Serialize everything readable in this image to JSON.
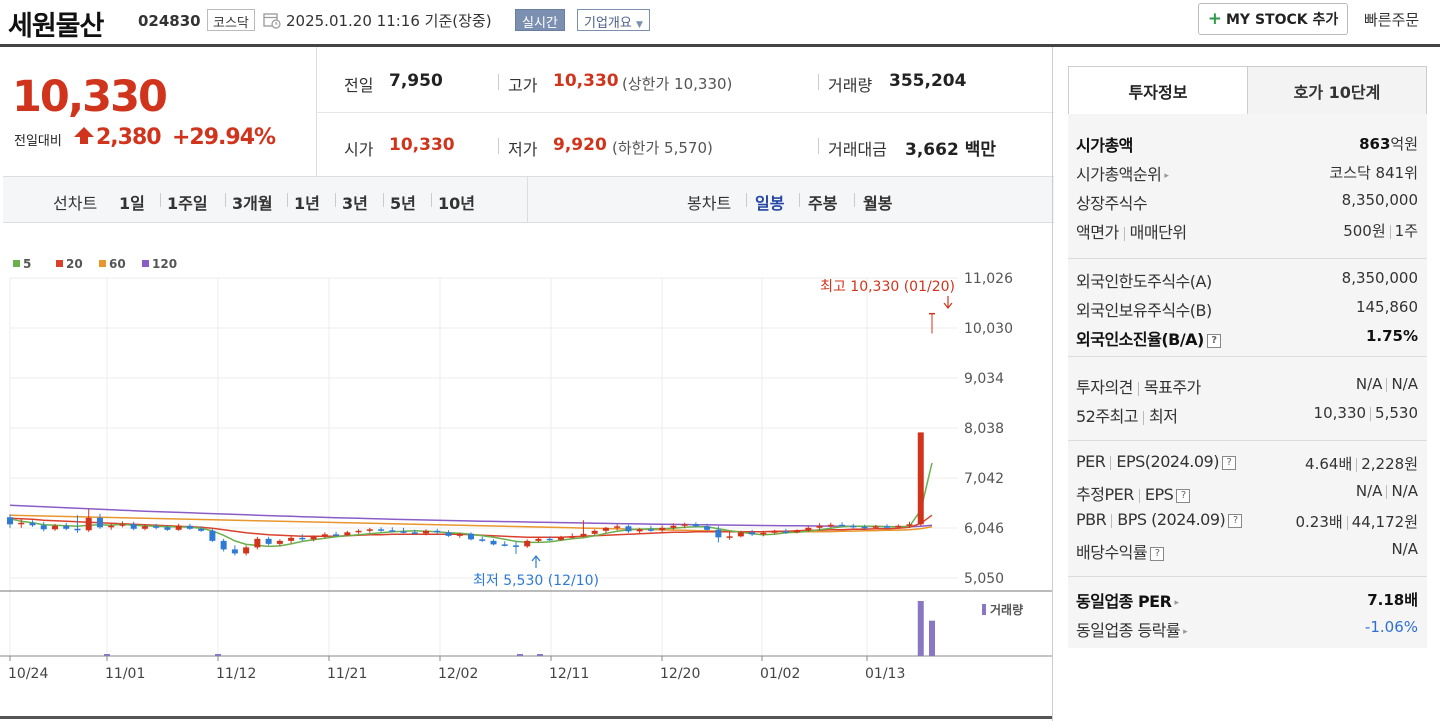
{
  "header": {
    "company": "세원물산",
    "code": "024830",
    "market": "코스닥",
    "datetime": "2025.01.20 11:16",
    "basis": "기준(장중)",
    "realtime": "실시간",
    "overview": "기업개요",
    "mystock": "MY STOCK 추가",
    "quick_order": "빠른주문"
  },
  "price": {
    "current": "10,330",
    "change_label": "전일대비",
    "change": "2,380",
    "change_pct": "+29.94%"
  },
  "stats": {
    "prev_label": "전일",
    "prev": "7,950",
    "high_label": "고가",
    "high": "10,330",
    "upper_label": "(상한가",
    "upper": "10,330)",
    "volume_label": "거래량",
    "volume": "355,204",
    "open_label": "시가",
    "open": "10,330",
    "low_label": "저가",
    "low": "9,920",
    "lower_label": "(하한가",
    "lower": "5,570)",
    "amount_label": "거래대금",
    "amount": "3,662",
    "amount_unit": "백만"
  },
  "tabs": {
    "line_chart": "선차트",
    "periods": [
      "1일",
      "1주일",
      "3개월",
      "1년",
      "3년",
      "5년",
      "10년"
    ],
    "candle_chart": "봉차트",
    "candles": [
      "일봉",
      "주봉",
      "월봉"
    ]
  },
  "chart_data": {
    "type": "candlestick",
    "legend": [
      "5",
      "20",
      "60",
      "120"
    ],
    "legend_colors": [
      "#6ab04c",
      "#d9412d",
      "#e8962e",
      "#8a5cc6"
    ],
    "y_ticks": [
      "11,026",
      "10,030",
      "9,034",
      "8,038",
      "7,042",
      "6,046",
      "5,050"
    ],
    "ylim": [
      5050,
      11026
    ],
    "x_ticks": [
      "10/24",
      "11/01",
      "11/12",
      "11/21",
      "12/02",
      "12/11",
      "12/20",
      "01/02",
      "01/13"
    ],
    "high_annotation": "최고 10,330 (01/20)",
    "low_annotation": "최저 5,530 (12/10)",
    "volume_label": "거래량",
    "up_color": "#d0341c",
    "down_color": "#2f7bd4",
    "candles": [
      [
        6260,
        6320,
        6050,
        6120
      ],
      [
        6120,
        6220,
        6050,
        6150
      ],
      [
        6150,
        6200,
        6070,
        6100
      ],
      [
        6100,
        6170,
        5980,
        6020
      ],
      [
        6020,
        6130,
        5990,
        6090
      ],
      [
        6090,
        6150,
        6000,
        6030
      ],
      [
        6030,
        6300,
        5950,
        6000
      ],
      [
        6000,
        6420,
        5970,
        6250
      ],
      [
        6250,
        6330,
        6030,
        6060
      ],
      [
        6060,
        6130,
        6010,
        6090
      ],
      [
        6090,
        6180,
        6060,
        6120
      ],
      [
        6120,
        6170,
        6000,
        6030
      ],
      [
        6030,
        6120,
        6000,
        6080
      ],
      [
        6080,
        6130,
        6020,
        6060
      ],
      [
        6060,
        6100,
        5990,
        6010
      ],
      [
        6010,
        6130,
        5990,
        6090
      ],
      [
        6090,
        6130,
        6010,
        6030
      ],
      [
        6030,
        6080,
        5970,
        5990
      ],
      [
        5990,
        6030,
        5770,
        5790
      ],
      [
        5790,
        5830,
        5580,
        5620
      ],
      [
        5620,
        5700,
        5500,
        5540
      ],
      [
        5540,
        5700,
        5500,
        5660
      ],
      [
        5660,
        5870,
        5620,
        5830
      ],
      [
        5830,
        5870,
        5700,
        5730
      ],
      [
        5730,
        5820,
        5690,
        5790
      ],
      [
        5790,
        5880,
        5740,
        5850
      ],
      [
        5850,
        5920,
        5790,
        5820
      ],
      [
        5820,
        5900,
        5780,
        5880
      ],
      [
        5880,
        5960,
        5840,
        5920
      ],
      [
        5920,
        5970,
        5870,
        5900
      ],
      [
        5900,
        5990,
        5880,
        5960
      ],
      [
        5960,
        6020,
        5930,
        5990
      ],
      [
        5990,
        6050,
        5950,
        6020
      ],
      [
        6020,
        6060,
        5970,
        6000
      ],
      [
        6000,
        6060,
        5960,
        5980
      ],
      [
        5980,
        6050,
        5940,
        5960
      ],
      [
        5960,
        6010,
        5920,
        5940
      ],
      [
        5940,
        6020,
        5900,
        5990
      ],
      [
        5990,
        6030,
        5930,
        5960
      ],
      [
        5960,
        6000,
        5870,
        5890
      ],
      [
        5890,
        5950,
        5850,
        5930
      ],
      [
        5930,
        5960,
        5800,
        5820
      ],
      [
        5820,
        5870,
        5770,
        5790
      ],
      [
        5790,
        5820,
        5700,
        5720
      ],
      [
        5720,
        5780,
        5680,
        5700
      ],
      [
        5700,
        5780,
        5530,
        5680
      ],
      [
        5680,
        5820,
        5650,
        5790
      ],
      [
        5790,
        5860,
        5760,
        5830
      ],
      [
        5830,
        5880,
        5790,
        5810
      ],
      [
        5810,
        5890,
        5790,
        5860
      ],
      [
        5860,
        5940,
        5830,
        5880
      ],
      [
        5880,
        6200,
        5860,
        5930
      ],
      [
        5930,
        6020,
        5900,
        5990
      ],
      [
        5990,
        6070,
        5950,
        6050
      ],
      [
        6050,
        6120,
        6000,
        6080
      ],
      [
        6080,
        6110,
        5950,
        5980
      ],
      [
        5980,
        6050,
        5940,
        6020
      ],
      [
        6020,
        6090,
        5970,
        6000
      ],
      [
        6000,
        6100,
        5960,
        6050
      ],
      [
        6050,
        6140,
        6010,
        6090
      ],
      [
        6090,
        6150,
        6040,
        6120
      ],
      [
        6120,
        6160,
        6060,
        6080
      ],
      [
        6080,
        6130,
        5990,
        6010
      ],
      [
        6010,
        6080,
        5760,
        5860
      ],
      [
        5860,
        5980,
        5810,
        5880
      ],
      [
        5880,
        5990,
        5860,
        5960
      ],
      [
        5960,
        6010,
        5890,
        5920
      ],
      [
        5920,
        5990,
        5880,
        5950
      ],
      [
        5950,
        6010,
        5920,
        5980
      ],
      [
        5980,
        6030,
        5930,
        5960
      ],
      [
        5960,
        6020,
        5940,
        6000
      ],
      [
        6000,
        6080,
        5970,
        6050
      ],
      [
        6050,
        6140,
        6010,
        6090
      ],
      [
        6090,
        6150,
        6050,
        6110
      ],
      [
        6110,
        6160,
        6070,
        6090
      ],
      [
        6090,
        6130,
        6040,
        6070
      ],
      [
        6070,
        6110,
        6020,
        6050
      ],
      [
        6050,
        6110,
        6020,
        6080
      ],
      [
        6080,
        6120,
        6030,
        6070
      ],
      [
        6070,
        6120,
        6040,
        6090
      ],
      [
        6090,
        6170,
        6060,
        6120
      ],
      [
        6120,
        7950,
        6090,
        7950
      ],
      [
        10330,
        10330,
        9920,
        10330
      ]
    ],
    "volume": [
      0,
      0,
      0,
      0,
      0,
      0,
      0,
      0,
      0,
      0,
      0,
      0,
      0,
      0,
      0,
      0,
      0,
      0,
      0,
      0,
      0,
      0,
      0,
      0,
      0,
      0,
      0,
      0,
      0,
      0,
      0,
      0,
      0,
      0,
      0,
      0,
      0,
      0,
      0,
      0,
      0,
      0,
      0,
      0,
      0,
      0,
      0,
      0,
      0,
      0,
      0,
      0,
      0,
      0,
      0,
      0,
      0,
      0,
      0,
      0,
      0,
      0,
      0,
      0,
      0,
      0,
      0,
      0,
      0,
      0,
      0,
      0,
      0,
      0,
      0,
      0,
      0,
      0,
      0,
      0,
      0,
      553000,
      355204
    ],
    "ma5": [
      6230,
      6180,
      6150,
      6110,
      6100,
      6090,
      6080,
      6100,
      6110,
      6100,
      6120,
      6100,
      6090,
      6080,
      6070,
      6070,
      6060,
      6040,
      5990,
      5900,
      5790,
      5720,
      5700,
      5680,
      5690,
      5730,
      5780,
      5810,
      5840,
      5870,
      5890,
      5910,
      5930,
      5950,
      5970,
      5980,
      5990,
      5980,
      5970,
      5950,
      5940,
      5920,
      5890,
      5860,
      5820,
      5780,
      5760,
      5760,
      5770,
      5800,
      5830,
      5850,
      5890,
      5940,
      5980,
      6010,
      6020,
      6030,
      6030,
      6040,
      6060,
      6070,
      6070,
      6030,
      5990,
      5960,
      5930,
      5910,
      5920,
      5950,
      5960,
      5980,
      6010,
      6040,
      6070,
      6080,
      6080,
      6080,
      6070,
      6070,
      6080,
      6400,
      7340
    ],
    "ma20": [
      6240,
      6230,
      6220,
      6200,
      6190,
      6180,
      6170,
      6160,
      6150,
      6140,
      6130,
      6120,
      6110,
      6100,
      6090,
      6080,
      6070,
      6060,
      6040,
      6010,
      5980,
      5950,
      5930,
      5910,
      5900,
      5890,
      5880,
      5880,
      5880,
      5880,
      5890,
      5900,
      5910,
      5910,
      5920,
      5920,
      5920,
      5920,
      5920,
      5920,
      5920,
      5910,
      5900,
      5890,
      5880,
      5870,
      5860,
      5860,
      5860,
      5860,
      5870,
      5880,
      5890,
      5900,
      5910,
      5920,
      5930,
      5940,
      5950,
      5960,
      5960,
      5970,
      5970,
      5970,
      5970,
      5970,
      5970,
      5970,
      5980,
      5980,
      5990,
      6000,
      6000,
      6010,
      6010,
      6020,
      6020,
      6030,
      6030,
      6040,
      6060,
      6140,
      6300
    ],
    "ma60": [
      6300,
      6295,
      6290,
      6285,
      6280,
      6275,
      6270,
      6265,
      6260,
      6255,
      6250,
      6245,
      6240,
      6235,
      6230,
      6225,
      6220,
      6215,
      6210,
      6205,
      6200,
      6195,
      6190,
      6185,
      6180,
      6175,
      6170,
      6165,
      6160,
      6155,
      6150,
      6145,
      6140,
      6135,
      6130,
      6125,
      6120,
      6115,
      6110,
      6105,
      6100,
      6095,
      6090,
      6085,
      6080,
      6075,
      6070,
      6065,
      6060,
      6055,
      6050,
      6045,
      6040,
      6035,
      6030,
      6025,
      6020,
      6015,
      6010,
      6005,
      6000,
      5995,
      5990,
      5985,
      5980,
      5975,
      5970,
      5970,
      5970,
      5970,
      5970,
      5970,
      5970,
      5975,
      5980,
      5985,
      5990,
      5995,
      6000,
      6005,
      6010,
      6030,
      6070
    ],
    "ma120": [
      6500,
      6490,
      6480,
      6470,
      6460,
      6450,
      6440,
      6430,
      6420,
      6410,
      6400,
      6390,
      6380,
      6372,
      6364,
      6356,
      6348,
      6340,
      6332,
      6324,
      6316,
      6308,
      6300,
      6293,
      6286,
      6279,
      6272,
      6265,
      6258,
      6251,
      6245,
      6239,
      6233,
      6227,
      6221,
      6215,
      6210,
      6205,
      6200,
      6195,
      6190,
      6186,
      6182,
      6178,
      6174,
      6170,
      6166,
      6162,
      6158,
      6154,
      6150,
      6146,
      6142,
      6138,
      6134,
      6130,
      6127,
      6124,
      6121,
      6118,
      6115,
      6112,
      6109,
      6106,
      6103,
      6100,
      6098,
      6096,
      6094,
      6092,
      6090,
      6088,
      6086,
      6084,
      6082,
      6080,
      6078,
      6076,
      6074,
      6072,
      6070,
      6080,
      6100
    ]
  },
  "invest": {
    "tab_on": "투자정보",
    "tab_off": "호가 10단계",
    "rows1": [
      {
        "label": "시가총액",
        "value": "863",
        "unit": "억원",
        "bold": true
      },
      {
        "label": "시가총액순위",
        "value": "코스닥 841위",
        "arrow": true
      },
      {
        "label": "상장주식수",
        "value": "8,350,000"
      },
      {
        "label": "액면가",
        "label2": "매매단위",
        "value": "500원",
        "value2": "1주"
      }
    ],
    "rows2": [
      {
        "label": "외국인한도주식수(A)",
        "value": "8,350,000"
      },
      {
        "label": "외국인보유주식수(B)",
        "value": "145,860"
      },
      {
        "label": "외국인소진율(B/A)",
        "value": "1.75%",
        "bold": true,
        "help": true
      }
    ],
    "rows3": [
      {
        "label": "투자의견",
        "label2": "목표주가",
        "value": "N/A",
        "value2": "N/A"
      },
      {
        "label": "52주최고",
        "label2": "최저",
        "value": "10,330",
        "value2": "5,530"
      }
    ],
    "rows4": [
      {
        "label": "PER",
        "label2": "EPS(2024.09)",
        "value": "4.64배",
        "value2": "2,228원",
        "help": true
      },
      {
        "label": "추정PER",
        "label2": "EPS",
        "value": "N/A",
        "value2": "N/A",
        "help": true
      },
      {
        "label": "PBR",
        "label2": "BPS (2024.09)",
        "value": "0.23배",
        "value2": "44,172원",
        "help": true
      },
      {
        "label": "배당수익률",
        "value": "N/A",
        "help": true
      }
    ],
    "rows5": [
      {
        "label": "동일업종 PER",
        "value": "7.18배",
        "bold": true,
        "arrow": true
      },
      {
        "label": "동일업종 등락률",
        "value": "-1.06%",
        "blue": true,
        "arrow": true
      }
    ]
  }
}
